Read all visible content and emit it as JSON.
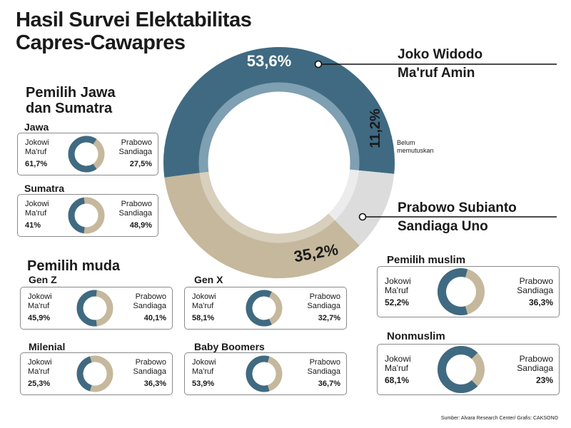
{
  "title_line1": "Hasil Survei Elektabilitas",
  "title_line2": "Capres-Cawapres",
  "colors": {
    "jokowi": "#3f6a82",
    "prabowo": "#c5b89c",
    "undecided": "#dcdcdc",
    "jokowi_inner": "#7f9fb2",
    "prabowo_inner": "#d8cfbc"
  },
  "chart_data": [
    {
      "type": "pie",
      "title": "Hasil Survei Elektabilitas Capres-Cawapres",
      "categories": [
        "Joko Widodo Ma'ruf Amin",
        "Belum memutuskan",
        "Prabowo Subianto Sandiaga Uno"
      ],
      "values": [
        53.6,
        11.2,
        35.2
      ],
      "labels": [
        "53,6%",
        "11,2%",
        "35,2%"
      ]
    },
    {
      "type": "pie",
      "title": "Jawa",
      "categories": [
        "Jokowi Ma'ruf",
        "Prabowo Sandiaga"
      ],
      "values": [
        61.7,
        27.5
      ]
    },
    {
      "type": "pie",
      "title": "Sumatra",
      "categories": [
        "Jokowi Ma'ruf",
        "Prabowo Sandiaga"
      ],
      "values": [
        41,
        48.9
      ]
    },
    {
      "type": "pie",
      "title": "Gen Z",
      "categories": [
        "Jokowi Ma'ruf",
        "Prabowo Sandiaga"
      ],
      "values": [
        45.9,
        40.1
      ]
    },
    {
      "type": "pie",
      "title": "Gen X",
      "categories": [
        "Jokowi Ma'ruf",
        "Prabowo Sandiaga"
      ],
      "values": [
        58.1,
        32.7
      ]
    },
    {
      "type": "pie",
      "title": "Milenial",
      "categories": [
        "Jokowi Ma'ruf",
        "Prabowo Sandiaga"
      ],
      "values": [
        25.3,
        36.3
      ]
    },
    {
      "type": "pie",
      "title": "Baby Boomers",
      "categories": [
        "Jokowi Ma'ruf",
        "Prabowo Sandiaga"
      ],
      "values": [
        53.9,
        36.7
      ]
    },
    {
      "type": "pie",
      "title": "Pemilih muslim",
      "categories": [
        "Jokowi Ma'ruf",
        "Prabowo Sandiaga"
      ],
      "values": [
        52.2,
        36.3
      ]
    },
    {
      "type": "pie",
      "title": "Nonmuslim",
      "categories": [
        "Jokowi Ma'ruf",
        "Prabowo Sandiaga"
      ],
      "values": [
        68.1,
        23
      ]
    }
  ],
  "main": {
    "jokowi_name1": "Joko Widodo",
    "jokowi_name2": "Ma'ruf Amin",
    "prabowo_name1": "Prabowo Subianto",
    "prabowo_name2": "Sandiaga Uno",
    "belum1": "Belum",
    "belum2": "memutuskan"
  },
  "sections": {
    "region_line1": "Pemilih Jawa",
    "region_line2": "dan Sumatra",
    "muda": "Pemilih muda"
  },
  "cards": {
    "jawa": {
      "title": "Jawa",
      "left1": "Jokowi",
      "left2": "Ma'ruf",
      "left_pct": "61,7%",
      "right1": "Prabowo",
      "right2": "Sandiaga",
      "right_pct": "27,5%"
    },
    "sumatra": {
      "title": "Sumatra",
      "left1": "Jokowi",
      "left2": "Ma'ruf",
      "left_pct": "41%",
      "right1": "Prabowo",
      "right2": "Sandiaga",
      "right_pct": "48,9%"
    },
    "genz": {
      "title": "Gen Z",
      "left1": "Jokowi",
      "left2": "Ma'ruf",
      "left_pct": "45,9%",
      "right1": "Prabowo",
      "right2": "Sandiaga",
      "right_pct": "40,1%"
    },
    "genx": {
      "title": "Gen X",
      "left1": "Jokowi",
      "left2": "Ma'ruf",
      "left_pct": "58,1%",
      "right1": "Prabowo",
      "right2": "Sandiaga",
      "right_pct": "32,7%"
    },
    "milenial": {
      "title": "Milenial",
      "left1": "Jokowi",
      "left2": "Ma'ruf",
      "left_pct": "25,3%",
      "right1": "Prabowo",
      "right2": "Sandiaga",
      "right_pct": "36,3%"
    },
    "boomers": {
      "title": "Baby Boomers",
      "left1": "Jokowi",
      "left2": "Ma'ruf",
      "left_pct": "53,9%",
      "right1": "Prabowo",
      "right2": "Sandiaga",
      "right_pct": "36,7%"
    },
    "muslim": {
      "title": "Pemilih muslim",
      "left1": "Jokowi",
      "left2": "Ma'ruf",
      "left_pct": "52,2%",
      "right1": "Prabowo",
      "right2": "Sandiaga",
      "right_pct": "36,3%"
    },
    "nonmuslim": {
      "title": "Nonmuslim",
      "left1": "Jokowi",
      "left2": "Ma'ruf",
      "left_pct": "68,1%",
      "right1": "Prabowo",
      "right2": "Sandiaga",
      "right_pct": "23%"
    }
  },
  "source": "Sumber: Alvara Research Center/ Grafis: CAKSONO"
}
